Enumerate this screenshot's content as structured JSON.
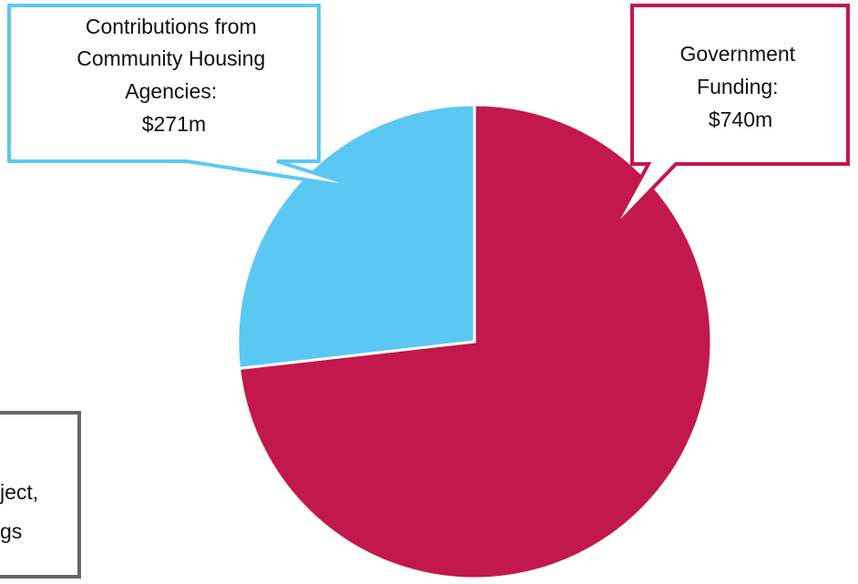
{
  "chart_data": {
    "type": "pie",
    "slices": [
      {
        "label": "Government Funding",
        "value": 740,
        "display_value": "$740m",
        "color": "#C2184D"
      },
      {
        "label": "Contributions from Community Housing Agencies",
        "value": 271,
        "display_value": "$271m",
        "color": "#5BC8F3"
      }
    ],
    "callouts": [
      {
        "lines": [
          "Contributions from",
          "Community Housing",
          "Agencies:",
          "$271m"
        ],
        "border_color": "#5BC8F3"
      },
      {
        "lines": [
          "Government",
          "Funding:",
          "$740m"
        ],
        "border_color": "#C2184D"
      },
      {
        "lines": [
          "ject,",
          "gs"
        ],
        "border_color": "#666666"
      }
    ]
  }
}
